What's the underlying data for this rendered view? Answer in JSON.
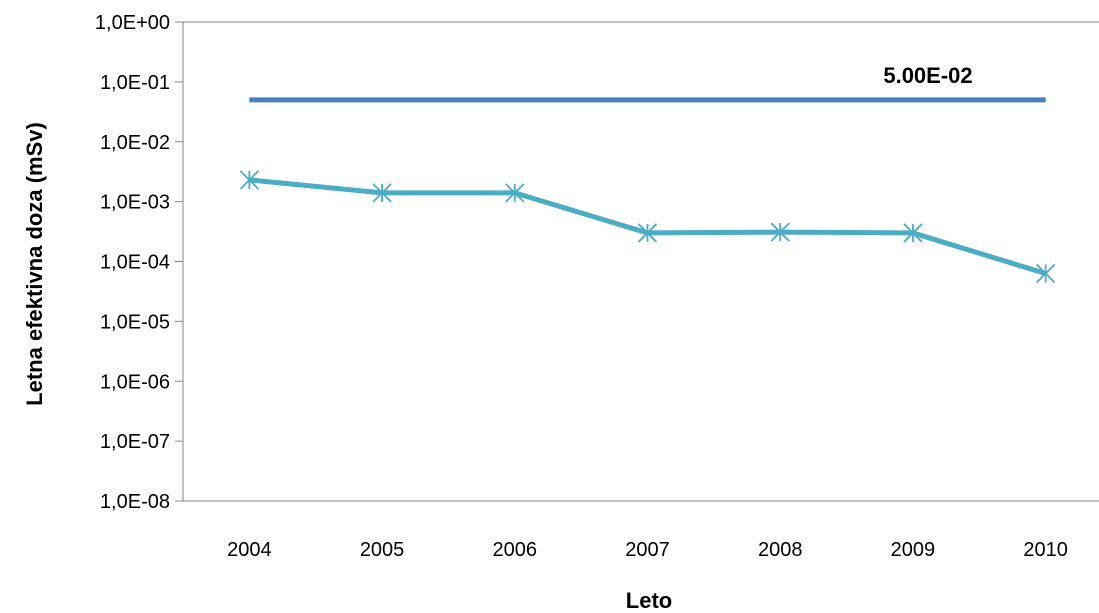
{
  "chart_data": {
    "type": "line",
    "xlabel": "Leto",
    "ylabel": "Letna efektivna doza (mSv)",
    "y_scale": "log",
    "ylim": [
      1e-08,
      1
    ],
    "y_tick_labels": [
      "1,0E+00",
      "1,0E-01",
      "1,0E-02",
      "1,0E-03",
      "1,0E-04",
      "1,0E-05",
      "1,0E-06",
      "1,0E-07",
      "1,0E-08"
    ],
    "categories": [
      "2004",
      "2005",
      "2006",
      "2007",
      "2008",
      "2009",
      "2010"
    ],
    "series": [
      {
        "values": [
          0.05,
          0.05,
          0.05,
          0.05,
          0.05,
          0.05,
          0.05
        ],
        "color": "#4a7ebb",
        "data_label": "5.00E-02"
      },
      {
        "values": [
          0.0023,
          0.0014,
          0.0014,
          0.0003,
          0.00031,
          0.0003,
          6.3e-05
        ],
        "color": "#4bacc6",
        "marker": "asterisk"
      }
    ],
    "grid": false,
    "legend": "none"
  }
}
